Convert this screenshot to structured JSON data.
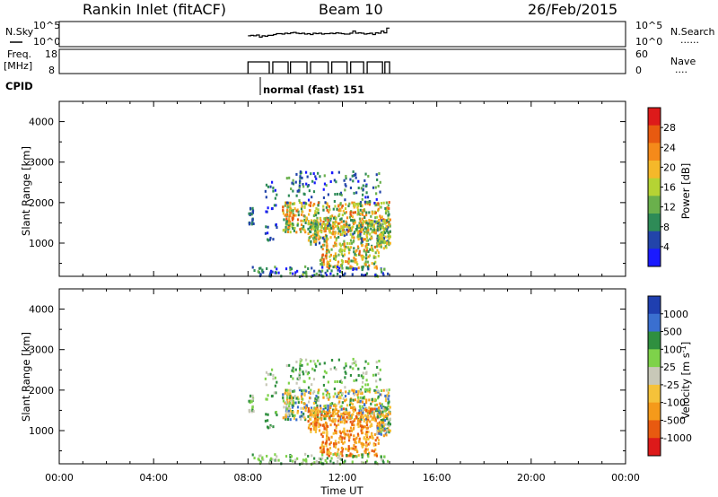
{
  "header": {
    "station": "Rankin Inlet (fitACF)",
    "beam": "Beam 10",
    "date": "26/Feb/2015"
  },
  "noise_panel": {
    "left_label": "N.Sky",
    "right_label": "N.Search",
    "right_label_dots": "......",
    "left_ticks": [
      "10^5",
      "10^0"
    ],
    "right_ticks": [
      "10^5",
      "10^0"
    ]
  },
  "freq_panel": {
    "left_label_1": "Freq.",
    "left_label_2": "[MHz]",
    "right_label": "Nave",
    "right_label_dots": "....",
    "left_ticks": [
      "18",
      "8"
    ],
    "right_ticks": [
      "60",
      "0"
    ]
  },
  "cpid": {
    "label": "CPID",
    "value": "normal (fast) 151"
  },
  "x_axis": {
    "label": "Time UT",
    "ticks": [
      "00:00",
      "04:00",
      "08:00",
      "12:00",
      "16:00",
      "20:00",
      "00:00"
    ]
  },
  "power_panel": {
    "ylabel": "Slant Range [km]",
    "yticks": [
      "1000",
      "2000",
      "3000",
      "4000"
    ],
    "colorbar_label": "Power [dB]",
    "colorbar_ticks": [
      "4",
      "8",
      "12",
      "16",
      "20",
      "24",
      "28"
    ],
    "colors": [
      "#1a1aff",
      "#2244aa",
      "#2e8b57",
      "#6ab04c",
      "#b5d334",
      "#f5b82a",
      "#f58a1a",
      "#e85a10",
      "#dd1a1a"
    ]
  },
  "velocity_panel": {
    "ylabel": "Slant Range [km]",
    "yticks": [
      "1000",
      "2000",
      "3000",
      "4000"
    ],
    "colorbar_label": "Velocity [m s^-1]",
    "colorbar_ticks": [
      "1000",
      "500",
      "100",
      "25",
      "-25",
      "-100",
      "-500",
      "-1000"
    ],
    "colors": [
      "#1f3fb0",
      "#3a6fd0",
      "#2f8f3f",
      "#7ed24a",
      "#c8c8b8",
      "#f5c23a",
      "#f59a1a",
      "#e85a10",
      "#dd1a1a"
    ]
  },
  "chart_data": {
    "type": "heatmap",
    "x_range_hours": [
      0,
      24
    ],
    "y_range_km": [
      180,
      4500
    ],
    "x_tick_hours": [
      0,
      4,
      8,
      12,
      16,
      20,
      24
    ],
    "y_tick_km": [
      1000,
      2000,
      3000,
      4000
    ],
    "observation_window_hours": [
      8.0,
      14.0
    ],
    "noise_sky_log": [
      2.1,
      2.2,
      2.1,
      2.3,
      1.8,
      2.1,
      2.0,
      2.2,
      2.2,
      2.4,
      2.6,
      2.6,
      2.5,
      2.7,
      2.6,
      2.8,
      2.9,
      2.7,
      2.6,
      2.7,
      2.5,
      2.6,
      2.4,
      2.7,
      2.6,
      2.7,
      2.5,
      2.6,
      2.6,
      2.7,
      2.6,
      2.8,
      2.7,
      2.6,
      2.5,
      2.5,
      2.7,
      3.2,
      2.7,
      2.8,
      2.7,
      2.5,
      2.6,
      2.7,
      2.4,
      2.8,
      2.7,
      3.2,
      2.8,
      3.9
    ],
    "freq_mhz_scan_edges_hours": [
      8.0,
      8.9,
      9.05,
      9.7,
      9.8,
      10.5,
      10.65,
      11.4,
      11.55,
      12.2,
      12.35,
      12.9,
      13.05,
      13.7,
      13.8,
      14.0
    ],
    "freq_mhz": 11.2,
    "power_db_colorbar_range": [
      0,
      32
    ],
    "velocity_colorbar_levels": [
      1000,
      500,
      100,
      25,
      -25,
      -100,
      -500,
      -1000
    ]
  }
}
